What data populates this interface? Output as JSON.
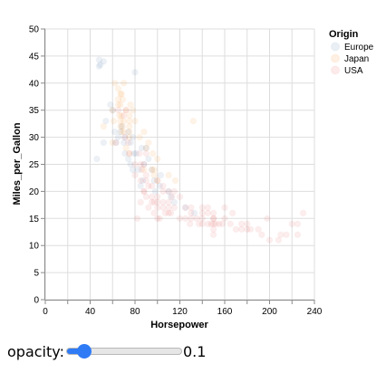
{
  "chart_data": {
    "type": "scatter",
    "xlabel": "Horsepower",
    "ylabel": "Miles_per_Gallon",
    "xlim": [
      0,
      240
    ],
    "ylim": [
      0,
      50
    ],
    "xticks": [
      0,
      20,
      40,
      60,
      80,
      100,
      120,
      140,
      160,
      180,
      200,
      220,
      240
    ],
    "xtick_labels": [
      "0",
      "40",
      "80",
      "120",
      "160",
      "200",
      "240"
    ],
    "yticks": [
      0,
      5,
      10,
      15,
      20,
      25,
      30,
      35,
      40,
      45,
      50
    ],
    "grid": true,
    "opacity": 0.1,
    "legend": {
      "title": "Origin",
      "placement": "top-right",
      "entries": [
        "Europe",
        "Japan",
        "USA"
      ]
    },
    "colors": {
      "Europe": "#4c78a8",
      "Japan": "#f58518",
      "USA": "#e45756"
    },
    "series": [
      {
        "name": "Europe",
        "points": [
          [
            46,
            26
          ],
          [
            48,
            43.1
          ],
          [
            49,
            43.4
          ],
          [
            48,
            44.3
          ],
          [
            52,
            44
          ],
          [
            52,
            29
          ],
          [
            54,
            33
          ],
          [
            58,
            36
          ],
          [
            60,
            35
          ],
          [
            62,
            31
          ],
          [
            63,
            29
          ],
          [
            65,
            30
          ],
          [
            67,
            31
          ],
          [
            68,
            32
          ],
          [
            70,
            29
          ],
          [
            71,
            30
          ],
          [
            71,
            27
          ],
          [
            74,
            26
          ],
          [
            74,
            31
          ],
          [
            76,
            25
          ],
          [
            76,
            29
          ],
          [
            78,
            30
          ],
          [
            78,
            24
          ],
          [
            79,
            27
          ],
          [
            80,
            42
          ],
          [
            81,
            27
          ],
          [
            83,
            24
          ],
          [
            85,
            21
          ],
          [
            86,
            28
          ],
          [
            87,
            22
          ],
          [
            88,
            25
          ],
          [
            90,
            28
          ],
          [
            92,
            26
          ],
          [
            95,
            24
          ],
          [
            97,
            22
          ],
          [
            98,
            20
          ],
          [
            102,
            21
          ],
          [
            103,
            23
          ],
          [
            110,
            20
          ],
          [
            112,
            19
          ],
          [
            115,
            18
          ],
          [
            125,
            17
          ],
          [
            133,
            16
          ]
        ]
      },
      {
        "name": "Japan",
        "points": [
          [
            52,
            32
          ],
          [
            60,
            29
          ],
          [
            60,
            35
          ],
          [
            61,
            33
          ],
          [
            62,
            40
          ],
          [
            65,
            36
          ],
          [
            65,
            37
          ],
          [
            65,
            39
          ],
          [
            66,
            34
          ],
          [
            67,
            38
          ],
          [
            67,
            36
          ],
          [
            67,
            33
          ],
          [
            67,
            32
          ],
          [
            68,
            38
          ],
          [
            68,
            34
          ],
          [
            68,
            31
          ],
          [
            69,
            37
          ],
          [
            69,
            32
          ],
          [
            70,
            33
          ],
          [
            70,
            31
          ],
          [
            70,
            40
          ],
          [
            72,
            35
          ],
          [
            72,
            28
          ],
          [
            75,
            32
          ],
          [
            75,
            33
          ],
          [
            75,
            34
          ],
          [
            75,
            30
          ],
          [
            75,
            27
          ],
          [
            75,
            31
          ],
          [
            76,
            36
          ],
          [
            78,
            35
          ],
          [
            80,
            33
          ],
          [
            84,
            30
          ],
          [
            88,
            31
          ],
          [
            88,
            24
          ],
          [
            90,
            28
          ],
          [
            92,
            29
          ],
          [
            95,
            24
          ],
          [
            96,
            27
          ],
          [
            97,
            23
          ],
          [
            97,
            24
          ],
          [
            100,
            26
          ],
          [
            100,
            22
          ],
          [
            110,
            23
          ],
          [
            116,
            22
          ],
          [
            132,
            33
          ]
        ]
      },
      {
        "name": "USA",
        "points": [
          [
            63,
            29
          ],
          [
            65,
            35
          ],
          [
            70,
            34
          ],
          [
            71,
            30
          ],
          [
            72,
            35
          ],
          [
            74,
            29
          ],
          [
            75,
            27
          ],
          [
            80,
            25
          ],
          [
            80,
            23
          ],
          [
            82,
            15
          ],
          [
            84,
            27
          ],
          [
            85,
            18
          ],
          [
            85,
            22
          ],
          [
            85,
            25
          ],
          [
            86,
            24
          ],
          [
            88,
            20
          ],
          [
            88,
            25
          ],
          [
            88,
            20
          ],
          [
            90,
            22
          ],
          [
            90,
            19
          ],
          [
            90,
            27
          ],
          [
            90,
            23
          ],
          [
            92,
            21
          ],
          [
            92,
            17
          ],
          [
            95,
            18
          ],
          [
            95,
            19
          ],
          [
            95,
            21
          ],
          [
            97,
            18
          ],
          [
            97,
            16
          ],
          [
            100,
            18
          ],
          [
            100,
            15
          ],
          [
            100,
            17
          ],
          [
            100,
            19
          ],
          [
            100,
            22
          ],
          [
            102,
            15
          ],
          [
            105,
            18
          ],
          [
            105,
            17
          ],
          [
            105,
            20
          ],
          [
            105,
            21
          ],
          [
            107,
            16
          ],
          [
            110,
            17
          ],
          [
            110,
            20
          ],
          [
            110,
            16
          ],
          [
            110,
            18
          ],
          [
            112,
            16
          ],
          [
            113,
            19
          ],
          [
            115,
            17
          ],
          [
            115,
            20
          ],
          [
            120,
            19
          ],
          [
            120,
            15
          ],
          [
            125,
            15
          ],
          [
            125,
            17
          ],
          [
            129,
            14
          ],
          [
            130,
            16
          ],
          [
            130,
            15
          ],
          [
            130,
            17
          ],
          [
            135,
            15
          ],
          [
            137,
            14
          ],
          [
            140,
            14
          ],
          [
            140,
            16
          ],
          [
            140,
            15
          ],
          [
            140,
            17
          ],
          [
            145,
            16
          ],
          [
            145,
            14
          ],
          [
            145,
            17
          ],
          [
            148,
            14
          ],
          [
            150,
            13
          ],
          [
            150,
            14
          ],
          [
            150,
            15
          ],
          [
            150,
            16
          ],
          [
            150,
            12
          ],
          [
            150,
            15
          ],
          [
            152,
            14
          ],
          [
            155,
            14
          ],
          [
            158,
            14
          ],
          [
            160,
            17
          ],
          [
            160,
            15
          ],
          [
            165,
            14
          ],
          [
            167,
            16
          ],
          [
            170,
            13
          ],
          [
            175,
            13
          ],
          [
            175,
            14
          ],
          [
            180,
            13
          ],
          [
            180,
            14
          ],
          [
            183,
            13
          ],
          [
            190,
            13
          ],
          [
            193,
            12
          ],
          [
            198,
            15
          ],
          [
            200,
            11
          ],
          [
            208,
            11
          ],
          [
            210,
            12
          ],
          [
            215,
            12
          ],
          [
            220,
            14
          ],
          [
            225,
            12
          ],
          [
            225,
            14
          ],
          [
            230,
            16
          ]
        ]
      }
    ]
  },
  "controls": {
    "opacity_label": "opacity:",
    "opacity_value": "0.1",
    "slider_min": "0",
    "slider_max": "1",
    "slider_step": "0.01"
  }
}
